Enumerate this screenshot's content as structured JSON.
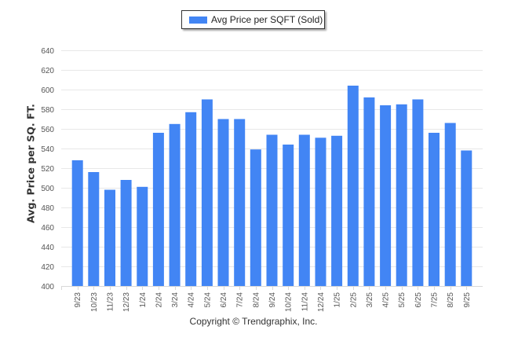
{
  "chart_data": {
    "type": "bar",
    "title": "",
    "xlabel": "",
    "ylabel": "Avg. Price per SQ. FT.",
    "ylim": [
      400,
      640
    ],
    "yticks": [
      400,
      420,
      440,
      460,
      480,
      500,
      520,
      540,
      560,
      580,
      600,
      620,
      640
    ],
    "grid": true,
    "legend_position": "top-center",
    "categories": [
      "9/23",
      "10/23",
      "11/23",
      "12/23",
      "1/24",
      "2/24",
      "3/24",
      "4/24",
      "5/24",
      "6/24",
      "7/24",
      "8/24",
      "9/24",
      "10/24",
      "11/24",
      "12/24",
      "1/25",
      "2/25",
      "3/25",
      "4/25",
      "5/25",
      "6/25",
      "7/25",
      "8/25",
      "9/25"
    ],
    "series": [
      {
        "name": "Avg Price per SQFT (Sold)",
        "color": "#4285f4",
        "values": [
          528,
          516,
          498,
          508,
          501,
          556,
          565,
          577,
          590,
          570,
          570,
          539,
          554,
          544,
          554,
          551,
          553,
          604,
          592,
          584,
          585,
          590,
          556,
          566,
          538
        ]
      }
    ]
  },
  "legend": {
    "label": "Avg Price per SQFT (Sold)"
  },
  "footer": {
    "copyright": "Copyright © Trendgraphix, Inc."
  }
}
